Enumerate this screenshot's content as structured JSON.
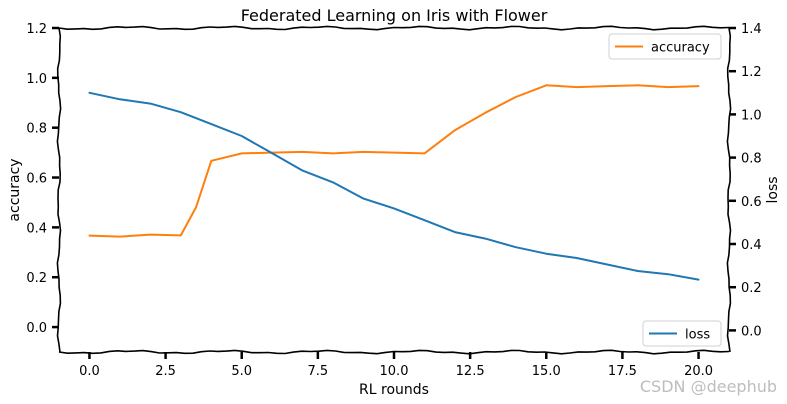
{
  "chart_data": {
    "type": "line",
    "title": "Federated Learning on Iris with Flower",
    "xlabel": "RL rounds",
    "ylabel_left": "accuracy",
    "ylabel_right": "loss",
    "xlim": [
      -1.0,
      21.0
    ],
    "ylim_left": [
      -0.1,
      1.2
    ],
    "ylim_right": [
      -0.1,
      1.4
    ],
    "x_ticks": [
      0.0,
      2.5,
      5.0,
      7.5,
      10.0,
      12.5,
      15.0,
      17.5,
      20.0
    ],
    "x_tick_labels": [
      "0.0",
      "2.5",
      "5.0",
      "7.5",
      "10.0",
      "12.5",
      "15.0",
      "17.5",
      "20.0"
    ],
    "y_left_ticks": [
      0.0,
      0.2,
      0.4,
      0.6,
      0.8,
      1.0,
      1.2
    ],
    "y_left_tick_labels": [
      "0.0",
      "0.2",
      "0.4",
      "0.6",
      "0.8",
      "1.0",
      "1.2"
    ],
    "y_right_ticks": [
      0.0,
      0.2,
      0.4,
      0.6,
      0.8,
      1.0,
      1.2,
      1.4
    ],
    "y_right_tick_labels": [
      "0.0",
      "0.2",
      "0.4",
      "0.6",
      "0.8",
      "1.0",
      "1.2",
      "1.4"
    ],
    "grid": false,
    "series": [
      {
        "name": "accuracy",
        "axis": "left",
        "color": "#ff7f0e",
        "legend_position": "top-right",
        "x": [
          0,
          1,
          2,
          3,
          3.5,
          4,
          5,
          6,
          7,
          8,
          9,
          10,
          11,
          12,
          13,
          14,
          15,
          16,
          17,
          18,
          19,
          20
        ],
        "y": [
          0.367,
          0.363,
          0.371,
          0.368,
          0.48,
          0.667,
          0.697,
          0.7,
          0.703,
          0.697,
          0.703,
          0.7,
          0.697,
          0.79,
          0.86,
          0.923,
          0.97,
          0.963,
          0.967,
          0.97,
          0.963,
          0.967
        ]
      },
      {
        "name": "loss",
        "axis": "right",
        "color": "#1f77b4",
        "legend_position": "bottom-right",
        "x": [
          0,
          1,
          2,
          3,
          4,
          5,
          6,
          7,
          8,
          9,
          10,
          11,
          12,
          13,
          14,
          15,
          16,
          17,
          18,
          19,
          20
        ],
        "y": [
          1.1,
          1.07,
          1.05,
          1.01,
          0.955,
          0.9,
          0.82,
          0.74,
          0.685,
          0.61,
          0.565,
          0.51,
          0.455,
          0.425,
          0.385,
          0.355,
          0.335,
          0.305,
          0.275,
          0.26,
          0.235
        ]
      }
    ]
  },
  "watermark": "CSDN @deephub"
}
